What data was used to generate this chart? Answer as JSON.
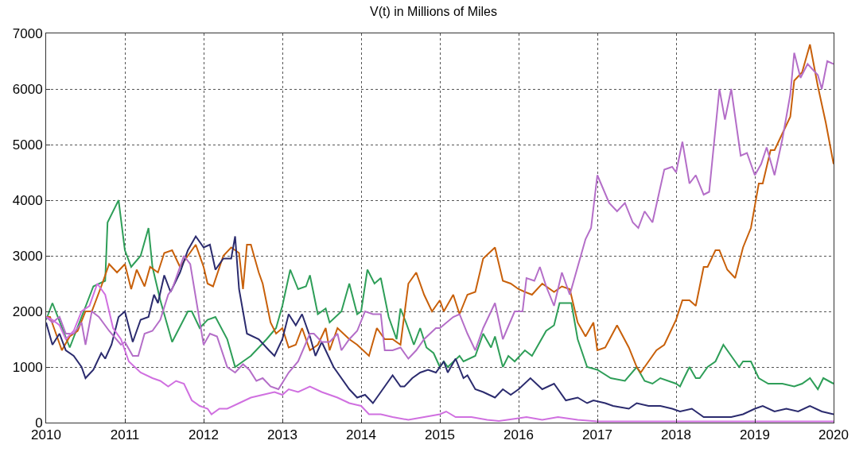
{
  "chart_data": {
    "type": "line",
    "title": "V(t) in Millions of Miles",
    "xlim": [
      2010,
      2020
    ],
    "xticks": [
      2010,
      2011,
      2012,
      2013,
      2014,
      2015,
      2016,
      2017,
      2018,
      2019,
      2020
    ],
    "ylim": [
      0,
      7000
    ],
    "yticks": [
      0,
      1000,
      2000,
      3000,
      4000,
      5000,
      6000,
      7000
    ],
    "grid": true,
    "marker": "none",
    "line_style": "solid",
    "series": [
      {
        "color": "#2e9e58",
        "x": [
          2010,
          2010.08,
          2010.3,
          2010.6,
          2010.75,
          2010.78,
          2010.92,
          2011.0,
          2011.08,
          2011.2,
          2011.3,
          2011.35,
          2011.45,
          2011.6,
          2011.8,
          2011.85,
          2011.95,
          2012.05,
          2012.15,
          2012.3,
          2012.4,
          2012.5,
          2012.6,
          2012.8,
          2012.92,
          2013.0,
          2013.1,
          2013.2,
          2013.3,
          2013.35,
          2013.45,
          2013.55,
          2013.6,
          2013.75,
          2013.85,
          2013.95,
          2014.0,
          2014.08,
          2014.17,
          2014.25,
          2014.35,
          2014.45,
          2014.5,
          2014.57,
          2014.67,
          2014.75,
          2014.83,
          2014.92,
          2015.0,
          2015.05,
          2015.1,
          2015.25,
          2015.3,
          2015.45,
          2015.55,
          2015.65,
          2015.7,
          2015.8,
          2015.87,
          2015.95,
          2016.08,
          2016.17,
          2016.35,
          2016.45,
          2016.52,
          2016.67,
          2016.75,
          2016.87,
          2017.0,
          2017.17,
          2017.35,
          2017.5,
          2017.6,
          2017.7,
          2017.8,
          2018.0,
          2018.05,
          2018.1,
          2018.17,
          2018.25,
          2018.3,
          2018.4,
          2018.5,
          2018.6,
          2018.7,
          2018.8,
          2018.85,
          2018.95,
          2019.05,
          2019.17,
          2019.3,
          2019.35,
          2019.5,
          2019.6,
          2019.7,
          2019.8,
          2019.87,
          2020.0
        ],
        "values": [
          1850,
          2150,
          1350,
          2450,
          2550,
          3600,
          4000,
          3100,
          2800,
          3000,
          3500,
          2800,
          2200,
          1450,
          2000,
          2000,
          1700,
          1850,
          1900,
          1500,
          1000,
          1100,
          1200,
          1500,
          1700,
          2100,
          2750,
          2400,
          2450,
          2650,
          1950,
          2050,
          1800,
          2000,
          2500,
          1950,
          2000,
          2750,
          2500,
          2600,
          1900,
          1500,
          2050,
          1800,
          1400,
          1700,
          1350,
          1250,
          1000,
          1100,
          1000,
          1200,
          1100,
          1200,
          1600,
          1350,
          1550,
          1000,
          1200,
          1100,
          1300,
          1200,
          1650,
          1750,
          2150,
          2150,
          1500,
          1000,
          950,
          800,
          750,
          1000,
          750,
          700,
          800,
          700,
          650,
          800,
          1000,
          800,
          800,
          1000,
          1100,
          1400,
          1200,
          1000,
          1100,
          1100,
          800,
          700,
          700,
          700,
          650,
          700,
          800,
          600,
          800,
          700
        ]
      },
      {
        "color": "#c8600a",
        "x": [
          2010,
          2010.05,
          2010.1,
          2010.2,
          2010.3,
          2010.4,
          2010.5,
          2010.58,
          2010.7,
          2010.8,
          2010.9,
          2011.0,
          2011.08,
          2011.15,
          2011.25,
          2011.32,
          2011.42,
          2011.5,
          2011.6,
          2011.7,
          2011.8,
          2011.9,
          2012.0,
          2012.05,
          2012.12,
          2012.25,
          2012.35,
          2012.45,
          2012.5,
          2012.55,
          2012.6,
          2012.7,
          2012.75,
          2012.85,
          2012.92,
          2013.0,
          2013.08,
          2013.17,
          2013.25,
          2013.35,
          2013.45,
          2013.55,
          2013.6,
          2013.7,
          2013.85,
          2013.95,
          2014.1,
          2014.2,
          2014.3,
          2014.4,
          2014.5,
          2014.6,
          2014.7,
          2014.8,
          2014.9,
          2015.0,
          2015.05,
          2015.17,
          2015.25,
          2015.35,
          2015.45,
          2015.55,
          2015.7,
          2015.8,
          2015.9,
          2016.0,
          2016.08,
          2016.17,
          2016.3,
          2016.45,
          2016.55,
          2016.65,
          2016.75,
          2016.85,
          2016.95,
          2017.0,
          2017.1,
          2017.25,
          2017.4,
          2017.5,
          2017.55,
          2017.65,
          2017.75,
          2017.85,
          2018.0,
          2018.08,
          2018.17,
          2018.25,
          2018.35,
          2018.4,
          2018.5,
          2018.55,
          2018.65,
          2018.75,
          2018.85,
          2018.95,
          2019.05,
          2019.1,
          2019.2,
          2019.25,
          2019.35,
          2019.45,
          2019.5,
          2019.6,
          2019.7,
          2019.8,
          2019.9,
          2020.0
        ],
        "values": [
          1900,
          1900,
          1700,
          1300,
          1550,
          1650,
          2000,
          2000,
          2450,
          2850,
          2700,
          2850,
          2400,
          2750,
          2450,
          2800,
          2700,
          3050,
          3100,
          2800,
          3000,
          3200,
          2800,
          2500,
          2450,
          3000,
          3150,
          3050,
          2400,
          3200,
          3200,
          2700,
          2500,
          1800,
          1600,
          1700,
          1350,
          1400,
          1700,
          1300,
          1400,
          1700,
          1300,
          1700,
          1500,
          1400,
          1200,
          1700,
          1500,
          1500,
          1400,
          2500,
          2700,
          2300,
          2000,
          2200,
          2000,
          2300,
          1950,
          2300,
          2350,
          2950,
          3150,
          2550,
          2500,
          2400,
          2350,
          2300,
          2500,
          2350,
          2450,
          2400,
          1800,
          1550,
          1800,
          1300,
          1350,
          1750,
          1350,
          1000,
          900,
          1100,
          1300,
          1400,
          1850,
          2200,
          2200,
          2100,
          2800,
          2800,
          3100,
          3100,
          2750,
          2600,
          3150,
          3500,
          4300,
          4300,
          4900,
          4900,
          5200,
          5500,
          6150,
          6300,
          6800,
          6050,
          5400,
          4650
        ]
      },
      {
        "color": "#2b2b6e",
        "x": [
          2010,
          2010.08,
          2010.17,
          2010.25,
          2010.35,
          2010.45,
          2010.5,
          2010.6,
          2010.7,
          2010.75,
          2010.83,
          2010.92,
          2011.0,
          2011.1,
          2011.2,
          2011.3,
          2011.37,
          2011.42,
          2011.5,
          2011.58,
          2011.7,
          2011.8,
          2011.9,
          2012.0,
          2012.08,
          2012.15,
          2012.25,
          2012.35,
          2012.4,
          2012.45,
          2012.55,
          2012.7,
          2012.83,
          2012.9,
          2013.0,
          2013.08,
          2013.17,
          2013.25,
          2013.35,
          2013.42,
          2013.5,
          2013.65,
          2013.85,
          2013.95,
          2014.05,
          2014.15,
          2014.3,
          2014.4,
          2014.5,
          2014.55,
          2014.65,
          2014.75,
          2014.85,
          2014.95,
          2015.05,
          2015.1,
          2015.2,
          2015.3,
          2015.35,
          2015.45,
          2015.55,
          2015.7,
          2015.8,
          2015.9,
          2016.0,
          2016.15,
          2016.3,
          2016.45,
          2016.6,
          2016.75,
          2016.87,
          2016.95,
          2017.1,
          2017.2,
          2017.4,
          2017.5,
          2017.65,
          2017.8,
          2017.95,
          2018.05,
          2018.2,
          2018.35,
          2018.5,
          2018.7,
          2018.85,
          2019.0,
          2019.1,
          2019.25,
          2019.4,
          2019.55,
          2019.7,
          2019.85,
          2020.0
        ],
        "values": [
          1800,
          1400,
          1600,
          1300,
          1200,
          1000,
          800,
          950,
          1250,
          1150,
          1400,
          1900,
          2000,
          1450,
          1850,
          1900,
          2300,
          2150,
          2650,
          2350,
          2700,
          3100,
          3350,
          3150,
          3200,
          2750,
          2950,
          2950,
          3350,
          2400,
          1600,
          1500,
          1300,
          1200,
          1500,
          1950,
          1750,
          1950,
          1550,
          1200,
          1450,
          1000,
          600,
          450,
          500,
          350,
          650,
          850,
          650,
          650,
          800,
          900,
          950,
          900,
          1100,
          900,
          1150,
          800,
          850,
          600,
          550,
          450,
          600,
          500,
          600,
          800,
          600,
          700,
          400,
          450,
          350,
          400,
          350,
          300,
          250,
          350,
          300,
          300,
          250,
          200,
          250,
          100,
          100,
          100,
          150,
          250,
          300,
          200,
          250,
          200,
          300,
          200,
          150
        ]
      },
      {
        "color": "#b46ec8",
        "x": [
          2010,
          2010.08,
          2010.17,
          2010.25,
          2010.35,
          2010.45,
          2010.5,
          2010.58,
          2010.67,
          2010.8,
          2010.95,
          2011.0,
          2011.1,
          2011.17,
          2011.25,
          2011.35,
          2011.45,
          2011.55,
          2011.6,
          2011.75,
          2011.83,
          2012.0,
          2012.08,
          2012.17,
          2012.3,
          2012.4,
          2012.5,
          2012.58,
          2012.67,
          2012.75,
          2012.85,
          2012.95,
          2013.08,
          2013.2,
          2013.35,
          2013.4,
          2013.5,
          2013.6,
          2013.7,
          2013.75,
          2013.85,
          2013.95,
          2014.05,
          2014.15,
          2014.25,
          2014.3,
          2014.4,
          2014.5,
          2014.6,
          2014.7,
          2014.8,
          2014.95,
          2015.0,
          2015.17,
          2015.25,
          2015.35,
          2015.45,
          2015.55,
          2015.65,
          2015.7,
          2015.8,
          2015.95,
          2016.05,
          2016.1,
          2016.2,
          2016.27,
          2016.35,
          2016.45,
          2016.55,
          2016.65,
          2016.75,
          2016.85,
          2016.92,
          2017.0,
          2017.15,
          2017.25,
          2017.35,
          2017.45,
          2017.52,
          2017.6,
          2017.7,
          2017.85,
          2017.95,
          2018.0,
          2018.08,
          2018.17,
          2018.25,
          2018.35,
          2018.42,
          2018.55,
          2018.62,
          2018.7,
          2018.82,
          2018.9,
          2019.0,
          2019.08,
          2019.15,
          2019.25,
          2019.35,
          2019.45,
          2019.5,
          2019.58,
          2019.67,
          2019.8,
          2019.85,
          2019.92,
          2020.0
        ],
        "values": [
          1900,
          1800,
          1900,
          1600,
          1600,
          1800,
          1400,
          2000,
          1900,
          1650,
          1400,
          1450,
          1200,
          1200,
          1600,
          1650,
          1850,
          2300,
          2400,
          3000,
          2850,
          1400,
          1600,
          1550,
          1000,
          900,
          1050,
          950,
          750,
          800,
          650,
          600,
          900,
          1100,
          1600,
          1600,
          1450,
          1450,
          1600,
          1300,
          1500,
          1650,
          2000,
          1950,
          1950,
          1300,
          1300,
          1350,
          1150,
          1300,
          1500,
          1700,
          1700,
          1900,
          1950,
          1600,
          1300,
          1700,
          2000,
          2150,
          1500,
          2000,
          2000,
          2600,
          2550,
          2800,
          2450,
          2100,
          2700,
          2300,
          2800,
          3300,
          3500,
          4450,
          3950,
          3800,
          3950,
          3600,
          3500,
          3800,
          3600,
          4550,
          4600,
          4500,
          5050,
          4300,
          4450,
          4100,
          4150,
          6000,
          5450,
          6000,
          4800,
          4850,
          4450,
          4650,
          4950,
          4450,
          5100,
          5900,
          6650,
          6200,
          6450,
          6250,
          6000,
          6500,
          6450
        ]
      },
      {
        "color": "#d070e0",
        "x": [
          2010,
          2010.08,
          2010.17,
          2010.25,
          2010.35,
          2010.45,
          2010.55,
          2010.65,
          2010.75,
          2010.85,
          2010.95,
          2011.05,
          2011.2,
          2011.35,
          2011.45,
          2011.55,
          2011.65,
          2011.75,
          2011.85,
          2011.95,
          2012.05,
          2012.1,
          2012.2,
          2012.3,
          2012.45,
          2012.6,
          2012.75,
          2012.9,
          2013.0,
          2013.08,
          2013.2,
          2013.35,
          2013.5,
          2013.7,
          2013.85,
          2014.0,
          2014.1,
          2014.25,
          2014.4,
          2014.6,
          2014.8,
          2015.0,
          2015.08,
          2015.2,
          2015.4,
          2015.6,
          2015.75,
          2016.0,
          2016.1,
          2016.3,
          2016.5,
          2016.75,
          2017.0,
          2017.5,
          2018.0,
          2019.0,
          2020.0
        ],
        "values": [
          1900,
          1850,
          1750,
          1500,
          1650,
          2000,
          2100,
          2500,
          2300,
          1700,
          1500,
          1100,
          900,
          800,
          750,
          650,
          750,
          700,
          400,
          300,
          250,
          150,
          250,
          250,
          350,
          450,
          500,
          550,
          500,
          600,
          550,
          650,
          550,
          450,
          350,
          300,
          150,
          150,
          100,
          50,
          100,
          150,
          200,
          100,
          100,
          50,
          30,
          80,
          100,
          50,
          100,
          50,
          20,
          20,
          20,
          20,
          20
        ]
      }
    ]
  }
}
